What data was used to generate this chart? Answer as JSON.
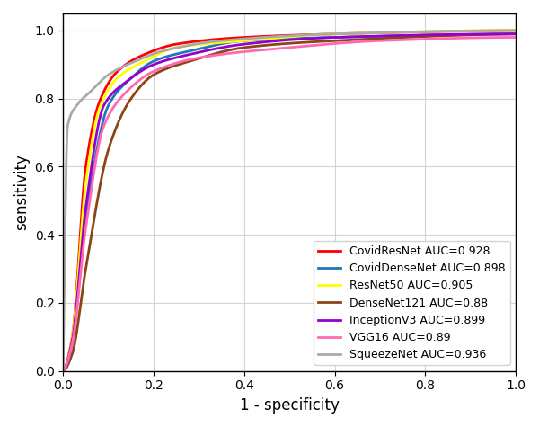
{
  "curves": [
    {
      "name": "CovidResNet AUC=0.928",
      "color": "#ff0000",
      "lw": 2.0,
      "key_points": [
        [
          0,
          0
        ],
        [
          0.02,
          0.1
        ],
        [
          0.05,
          0.6
        ],
        [
          0.08,
          0.79
        ],
        [
          0.12,
          0.88
        ],
        [
          0.18,
          0.93
        ],
        [
          0.25,
          0.96
        ],
        [
          0.4,
          0.98
        ],
        [
          0.6,
          0.99
        ],
        [
          1.0,
          1.0
        ]
      ]
    },
    {
      "name": "CovidDenseNet AUC=0.898",
      "color": "#1f77b4",
      "lw": 2.0,
      "key_points": [
        [
          0,
          0
        ],
        [
          0.02,
          0.08
        ],
        [
          0.05,
          0.45
        ],
        [
          0.1,
          0.78
        ],
        [
          0.15,
          0.86
        ],
        [
          0.2,
          0.91
        ],
        [
          0.28,
          0.94
        ],
        [
          0.4,
          0.97
        ],
        [
          0.6,
          0.98
        ],
        [
          1.0,
          0.99
        ]
      ]
    },
    {
      "name": "ResNet50 AUC=0.905",
      "color": "#ffff00",
      "lw": 2.0,
      "key_points": [
        [
          0,
          0
        ],
        [
          0.02,
          0.1
        ],
        [
          0.05,
          0.55
        ],
        [
          0.08,
          0.77
        ],
        [
          0.12,
          0.86
        ],
        [
          0.18,
          0.91
        ],
        [
          0.25,
          0.95
        ],
        [
          0.4,
          0.97
        ],
        [
          0.6,
          0.99
        ],
        [
          1.0,
          1.0
        ]
      ]
    },
    {
      "name": "DenseNet121 AUC=0.88",
      "color": "#8B4513",
      "lw": 2.0,
      "key_points": [
        [
          0,
          0
        ],
        [
          0.02,
          0.05
        ],
        [
          0.05,
          0.3
        ],
        [
          0.1,
          0.65
        ],
        [
          0.15,
          0.8
        ],
        [
          0.2,
          0.87
        ],
        [
          0.28,
          0.91
        ],
        [
          0.4,
          0.95
        ],
        [
          0.6,
          0.97
        ],
        [
          1.0,
          0.99
        ]
      ]
    },
    {
      "name": "InceptionV3 AUC=0.899",
      "color": "#9400D3",
      "lw": 2.0,
      "key_points": [
        [
          0,
          0
        ],
        [
          0.02,
          0.09
        ],
        [
          0.05,
          0.48
        ],
        [
          0.09,
          0.78
        ],
        [
          0.14,
          0.85
        ],
        [
          0.2,
          0.9
        ],
        [
          0.28,
          0.93
        ],
        [
          0.4,
          0.96
        ],
        [
          0.6,
          0.98
        ],
        [
          1.0,
          0.99
        ]
      ]
    },
    {
      "name": "VGG16 AUC=0.89",
      "color": "#ff69b4",
      "lw": 2.0,
      "key_points": [
        [
          0,
          0
        ],
        [
          0.02,
          0.08
        ],
        [
          0.05,
          0.42
        ],
        [
          0.09,
          0.72
        ],
        [
          0.14,
          0.82
        ],
        [
          0.2,
          0.88
        ],
        [
          0.3,
          0.92
        ],
        [
          0.5,
          0.95
        ],
        [
          0.7,
          0.97
        ],
        [
          1.0,
          0.98
        ]
      ]
    },
    {
      "name": "SqueezeNet AUC=0.936",
      "color": "#aaaaaa",
      "lw": 2.0,
      "key_points": [
        [
          0,
          0.0
        ],
        [
          0.01,
          0.72
        ],
        [
          0.03,
          0.78
        ],
        [
          0.06,
          0.82
        ],
        [
          0.1,
          0.87
        ],
        [
          0.16,
          0.91
        ],
        [
          0.22,
          0.94
        ],
        [
          0.35,
          0.97
        ],
        [
          0.6,
          0.99
        ],
        [
          1.0,
          1.0
        ]
      ]
    }
  ],
  "xlabel": "1 - specificity",
  "ylabel": "sensitivity",
  "xlim": [
    0.0,
    1.0
  ],
  "ylim": [
    0.0,
    1.05
  ],
  "xticks": [
    0.0,
    0.2,
    0.4,
    0.6,
    0.8,
    1.0
  ],
  "yticks": [
    0.0,
    0.2,
    0.4,
    0.6,
    0.8,
    1.0
  ],
  "grid": true,
  "legend_loc": "lower right",
  "legend_fontsize": 9,
  "figsize": [
    6.0,
    4.75
  ],
  "dpi": 100,
  "xlabel_fontsize": 12,
  "ylabel_fontsize": 12,
  "tick_labelsize": 10
}
